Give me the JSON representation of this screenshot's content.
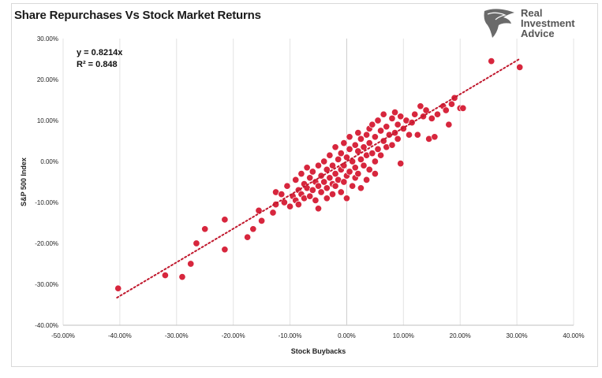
{
  "brand": {
    "line1": "Real",
    "line2": "Investment",
    "line3": "Advice",
    "logo_icon": "eagle-head-icon"
  },
  "annotation": {
    "equation": "y = 0.8214x",
    "r_squared": "R² = 0.848"
  },
  "chart_data": {
    "type": "scatter",
    "title": "Share Repurchases Vs Stock Market Returns",
    "xlabel": "Stock Buybacks",
    "ylabel": "S&P 500 Index",
    "xlim": [
      -50,
      40
    ],
    "ylim": [
      -40,
      30
    ],
    "x_ticks": [
      "-50.00%",
      "-40.00%",
      "-30.00%",
      "-20.00%",
      "-10.00%",
      "0.00%",
      "10.00%",
      "20.00%",
      "30.00%",
      "40.00%"
    ],
    "y_ticks": [
      "30.00%",
      "20.00%",
      "10.00%",
      "0.00%",
      "-10.00%",
      "-20.00%",
      "-30.00%",
      "-40.00%"
    ],
    "grid": "vertical",
    "marker_color": "#d7263d",
    "trendline": {
      "slope": 0.8214,
      "x_range": [
        -40.5,
        30.5
      ],
      "color": "#c0182d",
      "style": "dotted"
    },
    "series": [
      {
        "points": [
          [
            -40.3,
            -31.0
          ],
          [
            -32.0,
            -27.8
          ],
          [
            -29.0,
            -28.2
          ],
          [
            -27.5,
            -25.0
          ],
          [
            -26.5,
            -20.0
          ],
          [
            -25.0,
            -16.5
          ],
          [
            -21.5,
            -21.5
          ],
          [
            -21.5,
            -14.2
          ],
          [
            -17.5,
            -18.5
          ],
          [
            -16.5,
            -16.5
          ],
          [
            -15.5,
            -12.0
          ],
          [
            -15.0,
            -14.5
          ],
          [
            -13.0,
            -12.5
          ],
          [
            -12.5,
            -10.5
          ],
          [
            -12.5,
            -7.5
          ],
          [
            -11.5,
            -8.0
          ],
          [
            -11.0,
            -10.0
          ],
          [
            -10.5,
            -6.0
          ],
          [
            -10.0,
            -11.0
          ],
          [
            -9.5,
            -8.5
          ],
          [
            -9.0,
            -4.5
          ],
          [
            -9.0,
            -9.5
          ],
          [
            -8.5,
            -7.0
          ],
          [
            -8.5,
            -10.5
          ],
          [
            -8.0,
            -3.0
          ],
          [
            -8.0,
            -8.0
          ],
          [
            -7.5,
            -5.5
          ],
          [
            -7.5,
            -9.0
          ],
          [
            -7.0,
            -1.5
          ],
          [
            -7.0,
            -6.5
          ],
          [
            -6.5,
            -4.0
          ],
          [
            -6.5,
            -8.5
          ],
          [
            -6.0,
            -2.5
          ],
          [
            -6.0,
            -7.0
          ],
          [
            -5.5,
            -9.5
          ],
          [
            -5.5,
            -5.0
          ],
          [
            -5.0,
            -1.0
          ],
          [
            -5.0,
            -6.0
          ],
          [
            -5.0,
            -11.5
          ],
          [
            -4.5,
            -3.5
          ],
          [
            -4.5,
            -7.5
          ],
          [
            -4.0,
            0.0
          ],
          [
            -4.0,
            -5.0
          ],
          [
            -3.5,
            -2.0
          ],
          [
            -3.5,
            -6.5
          ],
          [
            -3.5,
            -9.0
          ],
          [
            -3.0,
            1.5
          ],
          [
            -3.0,
            -4.0
          ],
          [
            -2.5,
            -1.0
          ],
          [
            -2.5,
            -5.5
          ],
          [
            -2.5,
            -8.0
          ],
          [
            -2.0,
            3.5
          ],
          [
            -2.0,
            -3.0
          ],
          [
            -2.0,
            -6.0
          ],
          [
            -1.5,
            0.5
          ],
          [
            -1.5,
            -4.5
          ],
          [
            -1.0,
            2.0
          ],
          [
            -1.0,
            -2.0
          ],
          [
            -1.0,
            -7.5
          ],
          [
            -0.5,
            4.5
          ],
          [
            -0.5,
            -1.0
          ],
          [
            -0.5,
            -5.0
          ],
          [
            0.0,
            1.0
          ],
          [
            0.0,
            -3.5
          ],
          [
            0.0,
            -9.0
          ],
          [
            0.5,
            6.0
          ],
          [
            0.5,
            3.0
          ],
          [
            0.5,
            -2.5
          ],
          [
            1.0,
            0.0
          ],
          [
            1.0,
            -6.0
          ],
          [
            1.5,
            4.0
          ],
          [
            1.5,
            -1.5
          ],
          [
            1.5,
            -4.0
          ],
          [
            2.0,
            2.5
          ],
          [
            2.0,
            7.0
          ],
          [
            2.0,
            -3.0
          ],
          [
            2.5,
            5.5
          ],
          [
            2.5,
            0.5
          ],
          [
            2.5,
            -6.5
          ],
          [
            3.0,
            3.5
          ],
          [
            3.0,
            -1.0
          ],
          [
            3.5,
            6.5
          ],
          [
            3.5,
            1.5
          ],
          [
            3.5,
            -4.5
          ],
          [
            4.0,
            8.0
          ],
          [
            4.0,
            4.5
          ],
          [
            4.0,
            -2.0
          ],
          [
            4.5,
            2.0
          ],
          [
            4.5,
            9.0
          ],
          [
            5.0,
            6.0
          ],
          [
            5.0,
            0.0
          ],
          [
            5.0,
            -3.0
          ],
          [
            5.5,
            3.0
          ],
          [
            5.5,
            10.0
          ],
          [
            6.0,
            7.5
          ],
          [
            6.0,
            1.5
          ],
          [
            6.5,
            5.0
          ],
          [
            6.5,
            11.5
          ],
          [
            7.0,
            8.5
          ],
          [
            7.0,
            3.5
          ],
          [
            7.5,
            6.5
          ],
          [
            8.0,
            10.5
          ],
          [
            8.0,
            4.0
          ],
          [
            8.5,
            12.0
          ],
          [
            8.5,
            7.0
          ],
          [
            9.0,
            9.0
          ],
          [
            9.0,
            5.5
          ],
          [
            9.5,
            -0.5
          ],
          [
            9.5,
            11.0
          ],
          [
            10.0,
            8.0
          ],
          [
            10.5,
            10.0
          ],
          [
            11.0,
            6.5
          ],
          [
            11.5,
            9.5
          ],
          [
            12.0,
            11.5
          ],
          [
            12.5,
            6.5
          ],
          [
            13.0,
            13.5
          ],
          [
            13.5,
            11.0
          ],
          [
            14.0,
            12.5
          ],
          [
            14.5,
            5.5
          ],
          [
            15.0,
            10.5
          ],
          [
            15.5,
            6.0
          ],
          [
            16.0,
            11.5
          ],
          [
            17.0,
            13.5
          ],
          [
            17.5,
            12.5
          ],
          [
            18.0,
            9.0
          ],
          [
            18.5,
            14.0
          ],
          [
            19.0,
            15.5
          ],
          [
            20.0,
            13.0
          ],
          [
            20.5,
            13.0
          ],
          [
            25.5,
            24.5
          ],
          [
            30.5,
            23.0
          ]
        ]
      }
    ]
  }
}
